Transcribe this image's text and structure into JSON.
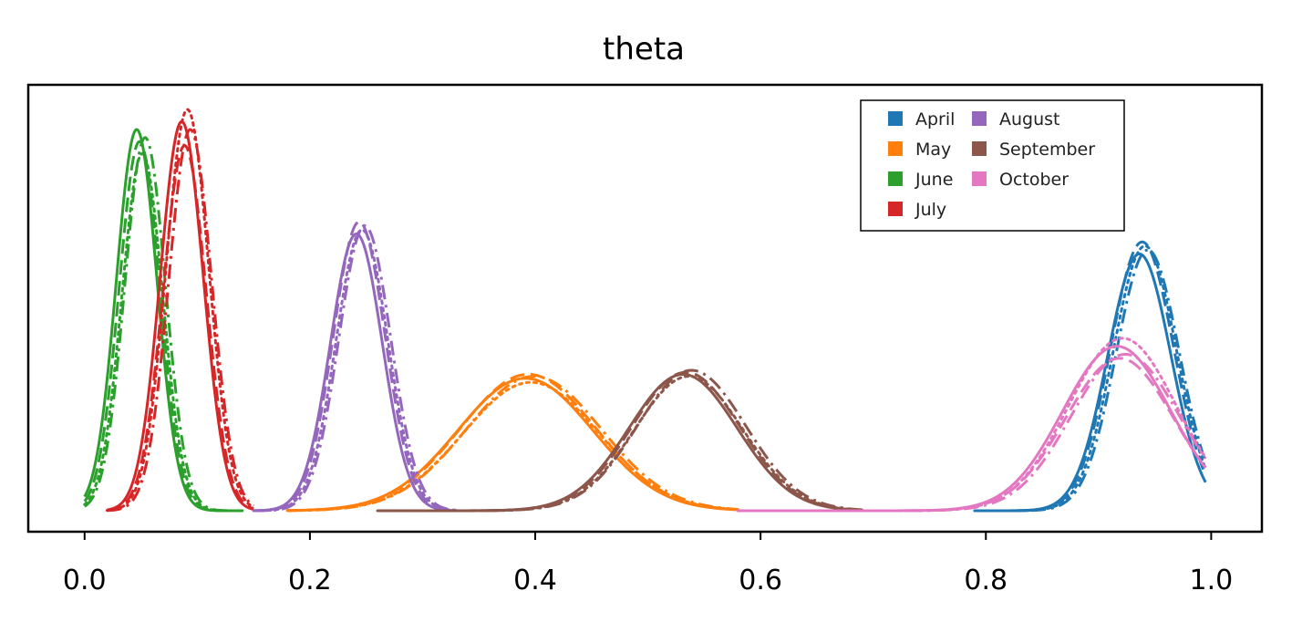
{
  "chart_data": {
    "type": "line",
    "title": "theta",
    "xlabel": "",
    "ylabel": "",
    "xlim": [
      -0.05,
      1.045
    ],
    "ylim": [
      0,
      1
    ],
    "xticks": [
      0.0,
      0.2,
      0.4,
      0.6,
      0.8,
      1.0
    ],
    "xtick_labels": [
      "0.0",
      "0.2",
      "0.4",
      "0.6",
      "0.8",
      "1.0"
    ],
    "yticks_visible": false,
    "grid": false,
    "legend": {
      "position": "top-right",
      "columns": 2
    },
    "line_styles": [
      "solid",
      "dashed",
      "dotted",
      "dashdot"
    ],
    "series": [
      {
        "name": "April",
        "color": "#1f77b4",
        "mean": 0.94,
        "sd": 0.028,
        "peak": 0.64,
        "range": [
          0.79,
          0.995
        ],
        "peak_variation": [
          0.0,
          0.03,
          0.02,
          0.01
        ]
      },
      {
        "name": "May",
        "color": "#ff7f0e",
        "mean": 0.395,
        "sd": 0.06,
        "peak": 0.33,
        "range": [
          0.18,
          0.58
        ],
        "peak_variation": [
          0.0,
          0.01,
          -0.01,
          0.005
        ]
      },
      {
        "name": "June",
        "color": "#2ca02c",
        "mean": 0.05,
        "sd": 0.018,
        "peak": 0.95,
        "range": [
          0.0,
          0.14
        ],
        "peak_variation": [
          0.0,
          -0.03,
          -0.06,
          -0.02
        ]
      },
      {
        "name": "July",
        "color": "#d62728",
        "mean": 0.09,
        "sd": 0.019,
        "peak": 0.97,
        "range": [
          0.02,
          0.15
        ],
        "peak_variation": [
          0.0,
          -0.06,
          0.03,
          -0.02
        ]
      },
      {
        "name": "August",
        "color": "#9467bd",
        "mean": 0.245,
        "sd": 0.023,
        "peak": 0.69,
        "range": [
          0.15,
          0.33
        ],
        "peak_variation": [
          0.0,
          0.03,
          0.01,
          0.02
        ]
      },
      {
        "name": "September",
        "color": "#8c564b",
        "mean": 0.535,
        "sd": 0.048,
        "peak": 0.34,
        "range": [
          0.26,
          0.69
        ],
        "peak_variation": [
          0.0,
          0.005,
          -0.005,
          0.01
        ]
      },
      {
        "name": "October",
        "color": "#e377c2",
        "mean": 0.92,
        "sd": 0.048,
        "peak": 0.41,
        "range": [
          0.58,
          0.995
        ],
        "peak_variation": [
          0.0,
          -0.03,
          0.02,
          -0.02
        ]
      }
    ]
  }
}
